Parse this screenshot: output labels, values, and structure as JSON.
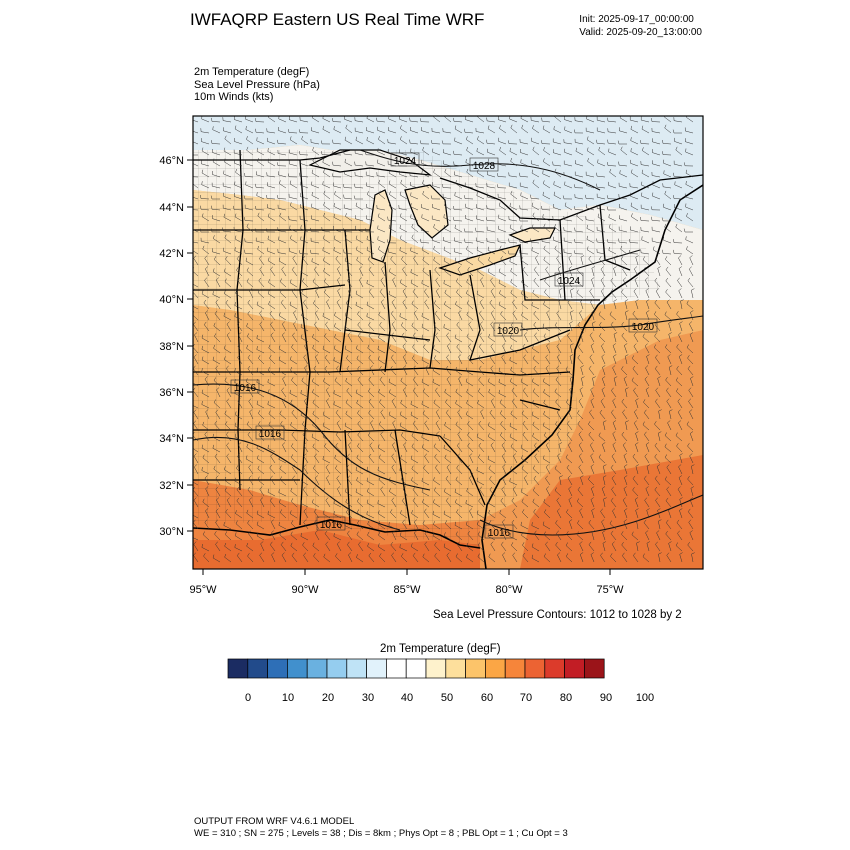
{
  "header": {
    "title": "IWFAQRP Eastern US Real Time WRF",
    "init": "Init: 2025-09-17_00:00:00",
    "valid": "Valid: 2025-09-20_13:00:00"
  },
  "fields": {
    "temperature": "2m Temperature   (degF)",
    "pressure": "Sea Level Pressure   (hPa)",
    "winds": "10m Winds   (kts)"
  },
  "map": {
    "lat_labels": [
      "46°N",
      "44°N",
      "42°N",
      "40°N",
      "38°N",
      "36°N",
      "34°N",
      "32°N",
      "30°N"
    ],
    "lon_labels": [
      "95°W",
      "90°W",
      "85°W",
      "80°W",
      "75°W"
    ],
    "isobar_labels": [
      "1024",
      "1028",
      "1024",
      "1020",
      "1020",
      "1016",
      "1016",
      "1016",
      "1016"
    ],
    "colors": {
      "cold": "#dcebf5",
      "cool": "#ffffff",
      "mild": "#fbe3b6",
      "warm": "#f5b86a",
      "hot": "#f08a44",
      "hotter": "#e86a30"
    }
  },
  "slp_contours_note": "Sea Level Pressure Contours: 1012 to 1028 by 2",
  "colorbar": {
    "title": "2m Temperature  (degF)",
    "tick_labels": [
      "0",
      "10",
      "20",
      "30",
      "40",
      "50",
      "60",
      "70",
      "80",
      "90",
      "100"
    ],
    "colors": [
      "#1b2c62",
      "#224b8b",
      "#2e6fb7",
      "#4190cd",
      "#6ab1e0",
      "#95cdef",
      "#bfe3f6",
      "#e1f2fb",
      "#ffffff",
      "#ffffff",
      "#fef2cc",
      "#fddf9c",
      "#fcc46a",
      "#fba645",
      "#f6853a",
      "#ec6333",
      "#dc3b2b",
      "#c21d25",
      "#9b1419"
    ]
  },
  "footer": {
    "line1": "OUTPUT FROM WRF V4.6.1 MODEL",
    "line2": "WE = 310 ; SN = 275 ; Levels = 38 ; Dis = 8km ; Phys Opt = 8 ; PBL Opt = 1 ; Cu Opt = 3"
  }
}
